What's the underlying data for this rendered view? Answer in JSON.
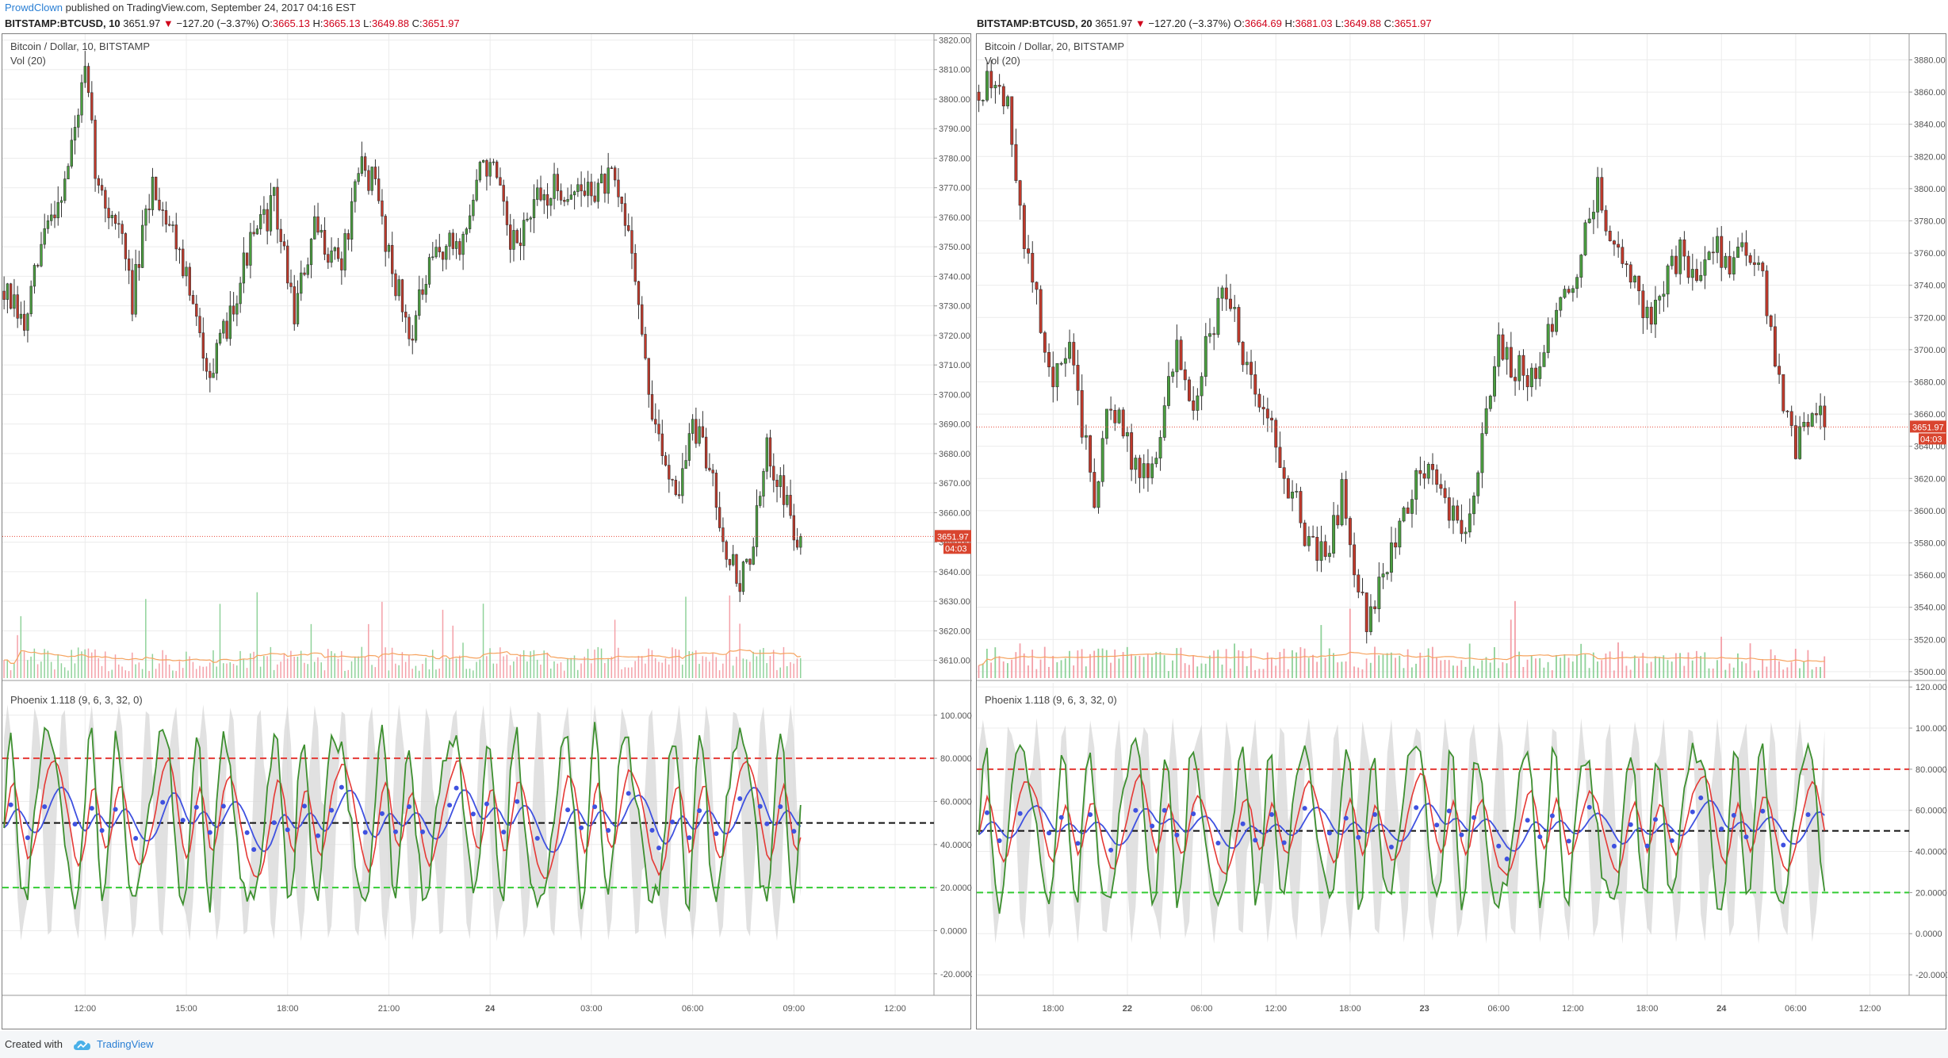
{
  "header": {
    "author": "ProwdClown",
    "published_text": "published on TradingView.com, September 24, 2017 04:16 EST"
  },
  "footer": {
    "created_with": "Created with",
    "brand": "TradingView"
  },
  "colors": {
    "up_candle": "#4a9e3f",
    "down_candle": "#c0392b",
    "vol_up": "#8fd29a",
    "vol_down": "#f4a0a8",
    "vol_ma": "#f6a35f",
    "price_line": "#e74c3c",
    "green_line": "#3d8f2f",
    "red_line": "#e53935",
    "blue_line": "#3f51e0",
    "band_fill": "#d7d7d7",
    "level_high": "#e53935",
    "level_mid": "#111111",
    "level_low": "#33cc33"
  },
  "chart_data": [
    {
      "type": "candlestick",
      "symbol_line": {
        "symbol": "BITSTAMP:BTCUSD, 10",
        "last": "3651.97",
        "arrow": "▼",
        "change": "−127.20 (−3.37%)",
        "o_label": "O:",
        "o": "3665.13",
        "h_label": "H:",
        "h": "3665.13",
        "l_label": "L:",
        "l": "3649.88",
        "c_label": "C:",
        "c": "3651.97"
      },
      "title": "Bitcoin / Dollar, 10, BITSTAMP",
      "volume_label": "Vol (20)",
      "last_price_label": "3651.97",
      "countdown_label": "04:03",
      "last_price": 3651.97,
      "ylim": [
        3604,
        3822
      ],
      "y_ticks": [
        "3610.00",
        "3620.00",
        "3630.00",
        "3640.00",
        "3650.00",
        "3660.00",
        "3670.00",
        "3680.00",
        "3690.00",
        "3700.00",
        "3710.00",
        "3720.00",
        "3730.00",
        "3740.00",
        "3750.00",
        "3760.00",
        "3770.00",
        "3780.00",
        "3790.00",
        "3800.00",
        "3810.00",
        "3820.00"
      ],
      "x_ticks": [
        "12:00",
        "15:00",
        "18:00",
        "21:00",
        "24",
        "03:00",
        "06:00",
        "09:00",
        "12:00"
      ],
      "bold_x_ticks": [
        "24"
      ],
      "x_tick_candle_index": [
        24,
        54,
        84,
        114,
        144,
        174,
        204,
        234,
        264
      ],
      "n_slots": 276,
      "n_candles": 237,
      "seed": 7,
      "close_path": [
        [
          0,
          3735
        ],
        [
          6,
          3722
        ],
        [
          12,
          3755
        ],
        [
          18,
          3772
        ],
        [
          24,
          3808
        ],
        [
          28,
          3768
        ],
        [
          34,
          3758
        ],
        [
          38,
          3732
        ],
        [
          44,
          3772
        ],
        [
          52,
          3750
        ],
        [
          58,
          3718
        ],
        [
          62,
          3708
        ],
        [
          66,
          3724
        ],
        [
          72,
          3748
        ],
        [
          80,
          3765
        ],
        [
          86,
          3728
        ],
        [
          92,
          3755
        ],
        [
          100,
          3745
        ],
        [
          106,
          3778
        ],
        [
          110,
          3770
        ],
        [
          114,
          3748
        ],
        [
          120,
          3720
        ],
        [
          128,
          3748
        ],
        [
          136,
          3752
        ],
        [
          142,
          3780
        ],
        [
          146,
          3772
        ],
        [
          150,
          3748
        ],
        [
          158,
          3765
        ],
        [
          164,
          3770
        ],
        [
          170,
          3768
        ],
        [
          180,
          3772
        ],
        [
          186,
          3752
        ],
        [
          190,
          3708
        ],
        [
          194,
          3682
        ],
        [
          200,
          3668
        ],
        [
          204,
          3690
        ],
        [
          210,
          3672
        ],
        [
          214,
          3648
        ],
        [
          218,
          3636
        ],
        [
          222,
          3650
        ],
        [
          226,
          3680
        ],
        [
          230,
          3672
        ],
        [
          234,
          3652
        ]
      ],
      "volume_max": 100,
      "oscillator": {
        "label": "Phoenix 1.118 (9, 6, 3, 32, 0)",
        "ylim": [
          -30,
          115
        ],
        "y_ticks": [
          "-20.0000",
          "0.0000",
          "20.0000",
          "40.0000",
          "60.0000",
          "80.0000",
          "100.0000"
        ],
        "levels": [
          80,
          50,
          20
        ],
        "cycles": 22
      }
    },
    {
      "type": "candlestick",
      "symbol_line": {
        "symbol": "BITSTAMP:BTCUSD, 20",
        "last": "3651.97",
        "arrow": "▼",
        "change": "−127.20 (−3.37%)",
        "o_label": "O:",
        "o": "3664.69",
        "h_label": "H:",
        "h": "3681.03",
        "l_label": "L:",
        "l": "3649.88",
        "c_label": "C:",
        "c": "3651.97"
      },
      "title": "Bitcoin / Dollar, 20, BITSTAMP",
      "volume_label": "Vol (20)",
      "last_price_label": "3651.97",
      "countdown_label": "04:03",
      "last_price": 3651.97,
      "ylim": [
        3496,
        3896
      ],
      "y_ticks": [
        "3500.00",
        "3520.00",
        "3540.00",
        "3560.00",
        "3580.00",
        "3600.00",
        "3620.00",
        "3640.00",
        "3660.00",
        "3680.00",
        "3700.00",
        "3720.00",
        "3740.00",
        "3760.00",
        "3780.00",
        "3800.00",
        "3820.00",
        "3840.00",
        "3860.00",
        "3880.00"
      ],
      "x_ticks": [
        "18:00",
        "22",
        "06:00",
        "12:00",
        "18:00",
        "23",
        "06:00",
        "12:00",
        "18:00",
        "24",
        "06:00",
        "12:00"
      ],
      "bold_x_ticks": [
        "22",
        "23",
        "24"
      ],
      "x_tick_candle_index": [
        18,
        36,
        54,
        72,
        90,
        108,
        126,
        144,
        162,
        180,
        198,
        216
      ],
      "n_slots": 226,
      "n_candles": 206,
      "seed": 13,
      "close_path": [
        [
          0,
          3860
        ],
        [
          4,
          3868
        ],
        [
          7,
          3850
        ],
        [
          10,
          3780
        ],
        [
          14,
          3730
        ],
        [
          18,
          3680
        ],
        [
          22,
          3700
        ],
        [
          25,
          3650
        ],
        [
          28,
          3610
        ],
        [
          32,
          3668
        ],
        [
          36,
          3640
        ],
        [
          40,
          3620
        ],
        [
          44,
          3650
        ],
        [
          48,
          3700
        ],
        [
          52,
          3670
        ],
        [
          56,
          3710
        ],
        [
          60,
          3740
        ],
        [
          64,
          3700
        ],
        [
          68,
          3670
        ],
        [
          72,
          3640
        ],
        [
          76,
          3610
        ],
        [
          80,
          3580
        ],
        [
          84,
          3570
        ],
        [
          88,
          3610
        ],
        [
          91,
          3570
        ],
        [
          94,
          3530
        ],
        [
          98,
          3560
        ],
        [
          102,
          3590
        ],
        [
          106,
          3620
        ],
        [
          110,
          3630
        ],
        [
          114,
          3600
        ],
        [
          118,
          3590
        ],
        [
          122,
          3640
        ],
        [
          126,
          3700
        ],
        [
          130,
          3690
        ],
        [
          134,
          3680
        ],
        [
          138,
          3710
        ],
        [
          142,
          3730
        ],
        [
          146,
          3760
        ],
        [
          150,
          3800
        ],
        [
          154,
          3760
        ],
        [
          158,
          3750
        ],
        [
          162,
          3720
        ],
        [
          166,
          3740
        ],
        [
          170,
          3760
        ],
        [
          174,
          3740
        ],
        [
          178,
          3770
        ],
        [
          182,
          3750
        ],
        [
          186,
          3760
        ],
        [
          190,
          3740
        ],
        [
          194,
          3680
        ],
        [
          198,
          3640
        ],
        [
          202,
          3668
        ],
        [
          205,
          3652
        ]
      ],
      "volume_max": 100,
      "oscillator": {
        "label": "Phoenix 1.118 (9, 6, 3, 32, 0)",
        "ylim": [
          -30,
          122
        ],
        "y_ticks": [
          "-20.0000",
          "0.0000",
          "20.0000",
          "40.0000",
          "60.0000",
          "80.0000",
          "100.0000",
          "120.0000"
        ],
        "levels": [
          80,
          50,
          20
        ],
        "cycles": 24
      }
    }
  ]
}
